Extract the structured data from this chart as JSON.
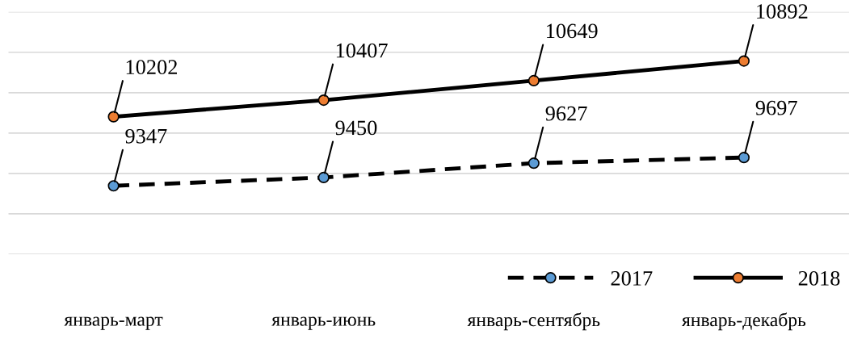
{
  "chart_data": {
    "type": "line",
    "categories": [
      "январь-март",
      "январь-июнь",
      "январь-сентябрь",
      "январь-декабрь"
    ],
    "series": [
      {
        "name": "2017",
        "color": "#5b9bd5",
        "line_style": "dashed",
        "values": [
          9347,
          9450,
          9627,
          9697
        ]
      },
      {
        "name": "2018",
        "color": "#ed7d31",
        "line_style": "solid",
        "values": [
          10202,
          10407,
          10649,
          10892
        ]
      }
    ],
    "ylim": [
      8500,
      11500
    ],
    "yticks": [
      {
        "value": 8500,
        "label": null
      },
      {
        "value": 9000,
        "label": null
      },
      {
        "value": 9500,
        "label": null
      },
      {
        "value": 10000,
        "label": null
      },
      {
        "value": 10500,
        "label": null
      },
      {
        "value": 11000,
        "label": null
      },
      {
        "value": 11500,
        "label": null
      }
    ],
    "grid": "y",
    "legend": "bottom right",
    "marker": "circle",
    "data_labels": true,
    "tick_labels": "x"
  }
}
